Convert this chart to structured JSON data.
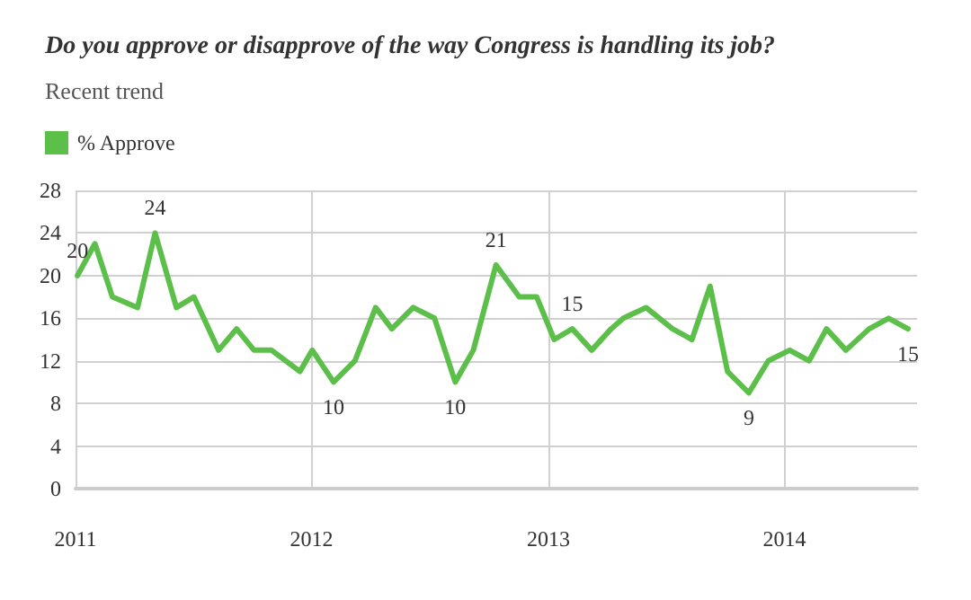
{
  "chart_data": {
    "type": "line",
    "title": "Do you approve or disapprove of the way Congress is handling its job?",
    "subtitle": "Recent trend",
    "x": [
      "2011-01-04",
      "2011-01-31",
      "2011-02-27",
      "2011-04-07",
      "2011-05-04",
      "2011-06-06",
      "2011-07-03",
      "2011-08-10",
      "2011-09-07",
      "2011-10-04",
      "2011-10-31",
      "2011-12-14",
      "2012-01-02",
      "2012-02-04",
      "2012-03-08",
      "2012-04-09",
      "2012-05-04",
      "2012-06-06",
      "2012-07-09",
      "2012-08-10",
      "2012-09-07",
      "2012-10-12",
      "2012-11-17",
      "2012-12-14",
      "2013-01-10",
      "2013-02-07",
      "2013-03-09",
      "2013-04-08",
      "2013-04-27",
      "2013-06-01",
      "2013-07-12",
      "2013-08-11",
      "2013-09-08",
      "2013-10-05",
      "2013-11-07",
      "2013-12-07",
      "2014-01-09",
      "2014-02-08",
      "2014-03-07",
      "2014-04-06",
      "2014-05-12",
      "2014-06-11",
      "2014-07-11"
    ],
    "series": [
      {
        "name": "% Approve",
        "color": "#5bbf4a",
        "values": [
          20,
          23,
          18,
          17,
          24,
          17,
          18,
          13,
          15,
          13,
          13,
          11,
          13,
          10,
          12,
          17,
          15,
          17,
          16,
          10,
          13,
          21,
          18,
          18,
          14,
          15,
          13,
          15,
          16,
          17,
          15,
          14,
          19,
          11,
          9,
          12,
          13,
          12,
          15,
          13,
          15,
          16,
          15
        ],
        "value_labels": [
          "20",
          null,
          null,
          null,
          "24",
          null,
          null,
          null,
          null,
          null,
          null,
          null,
          null,
          "10",
          null,
          null,
          null,
          null,
          null,
          "10",
          null,
          "21",
          null,
          null,
          null,
          "15",
          null,
          null,
          null,
          null,
          null,
          null,
          null,
          null,
          "9",
          null,
          null,
          null,
          null,
          null,
          null,
          null,
          "15"
        ]
      }
    ],
    "xlim": [
      "2011-01-01",
      "2014-07-25"
    ],
    "xticks": [
      "2011",
      "2012",
      "2013",
      "2014"
    ],
    "ylim": [
      0,
      28
    ],
    "yticks": [
      0,
      4,
      8,
      12,
      16,
      20,
      24,
      28
    ],
    "grid": true,
    "legend": "top left",
    "marker": "none",
    "line_style": "solid"
  }
}
